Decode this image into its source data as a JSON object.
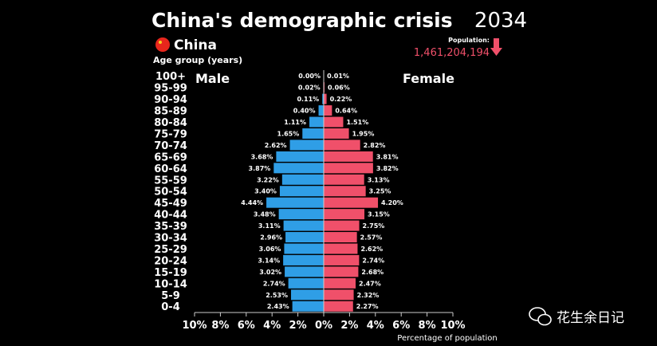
{
  "chart_data": {
    "type": "bar",
    "title": "China's demographic crisis",
    "country": "China",
    "subtitle": "Age group (years)",
    "year": "2034",
    "population_label": "Population:",
    "population_value": "1,461,204,194",
    "left_label": "Male",
    "right_label": "Female",
    "xlabel": "Percentage of population",
    "xlim": [
      -10,
      10
    ],
    "x_ticks": [
      -10,
      -8,
      -6,
      -4,
      -2,
      0,
      2,
      4,
      6,
      8,
      10
    ],
    "x_tick_labels": [
      "10%",
      "8%",
      "6%",
      "4%",
      "2%",
      "0%",
      "2%",
      "4%",
      "6%",
      "8%",
      "10%"
    ],
    "categories": [
      "100+",
      "95-99",
      "90-94",
      "85-89",
      "80-84",
      "75-79",
      "70-74",
      "65-69",
      "60-64",
      "55-59",
      "50-54",
      "45-49",
      "40-44",
      "35-39",
      "30-34",
      "25-29",
      "20-24",
      "15-19",
      "10-14",
      "5-9",
      "0-4"
    ],
    "series": [
      {
        "name": "Male",
        "color": "#2f9ee6",
        "values": [
          0.0,
          0.02,
          0.11,
          0.4,
          1.11,
          1.65,
          2.62,
          3.68,
          3.87,
          3.22,
          3.4,
          4.44,
          3.48,
          3.11,
          2.96,
          3.06,
          3.14,
          3.02,
          2.74,
          2.53,
          2.43
        ],
        "labels": [
          "0.00%",
          "0.02%",
          "0.11%",
          "0.40%",
          "1.11%",
          "1.65%",
          "2.62%",
          "3.68%",
          "3.87%",
          "3.22%",
          "3.40%",
          "4.44%",
          "3.48%",
          "3.11%",
          "2.96%",
          "3.06%",
          "3.14%",
          "3.02%",
          "2.74%",
          "2.53%",
          "2.43%"
        ]
      },
      {
        "name": "Female",
        "color": "#f0506a",
        "values": [
          0.01,
          0.06,
          0.22,
          0.64,
          1.51,
          1.95,
          2.82,
          3.81,
          3.82,
          3.13,
          3.25,
          4.2,
          3.15,
          2.75,
          2.57,
          2.62,
          2.74,
          2.68,
          2.47,
          2.32,
          2.27
        ],
        "labels": [
          "0.01%",
          "0.06%",
          "0.22%",
          "0.64%",
          "1.51%",
          "1.95%",
          "2.82%",
          "3.81%",
          "3.82%",
          "3.13%",
          "3.25%",
          "4.20%",
          "3.15%",
          "2.75%",
          "2.57%",
          "2.62%",
          "2.74%",
          "2.68%",
          "2.47%",
          "2.32%",
          "2.27%"
        ]
      }
    ]
  },
  "colors": {
    "background": "#000000",
    "text": "#ffffff",
    "population_value": "#f0506a",
    "flag": "#e8261c",
    "axis": "#cccccc"
  },
  "icons": {
    "flag": "china-flag-icon",
    "trend": "arrow-down-icon"
  },
  "watermark": "花生余日记"
}
